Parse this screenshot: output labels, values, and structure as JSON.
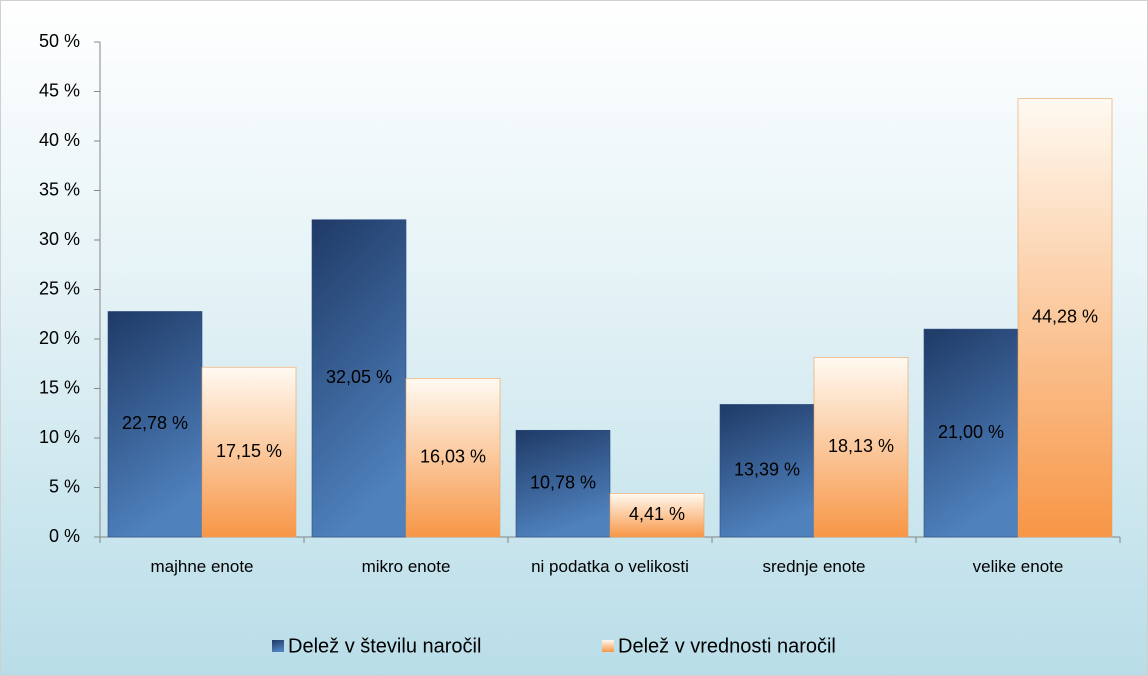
{
  "chart_data": {
    "type": "bar",
    "categories": [
      "majhne enote",
      "mikro enote",
      "ni podatka o velikosti",
      "srednje enote",
      "velike enote"
    ],
    "series": [
      {
        "name": "Delež v številu naročil",
        "color": "#4f81bd",
        "values": [
          22.78,
          32.05,
          10.78,
          13.39,
          21.0
        ],
        "value_labels": [
          "22,78 %",
          "32,05 %",
          "10,78 %",
          "13,39 %",
          "21,00 %"
        ]
      },
      {
        "name": "Delež v vrednosti naročil",
        "color": "#f79646",
        "values": [
          17.15,
          16.03,
          4.41,
          18.13,
          44.28
        ],
        "value_labels": [
          "17,15 %",
          "16,03 %",
          "4,41 %",
          "18,13 %",
          "44,28 %"
        ]
      }
    ],
    "ylim": [
      0,
      50
    ],
    "yticks": [
      {
        "value": 0,
        "label": "0 %"
      },
      {
        "value": 5,
        "label": "5 %"
      },
      {
        "value": 10,
        "label": "10 %"
      },
      {
        "value": 15,
        "label": "15 %"
      },
      {
        "value": 20,
        "label": "20 %"
      },
      {
        "value": 25,
        "label": "25 %"
      },
      {
        "value": 30,
        "label": "30 %"
      },
      {
        "value": 35,
        "label": "35 %"
      },
      {
        "value": 40,
        "label": "40 %"
      },
      {
        "value": 45,
        "label": "45 %"
      },
      {
        "value": 50,
        "label": "50 %"
      }
    ],
    "legend": "bottom"
  }
}
